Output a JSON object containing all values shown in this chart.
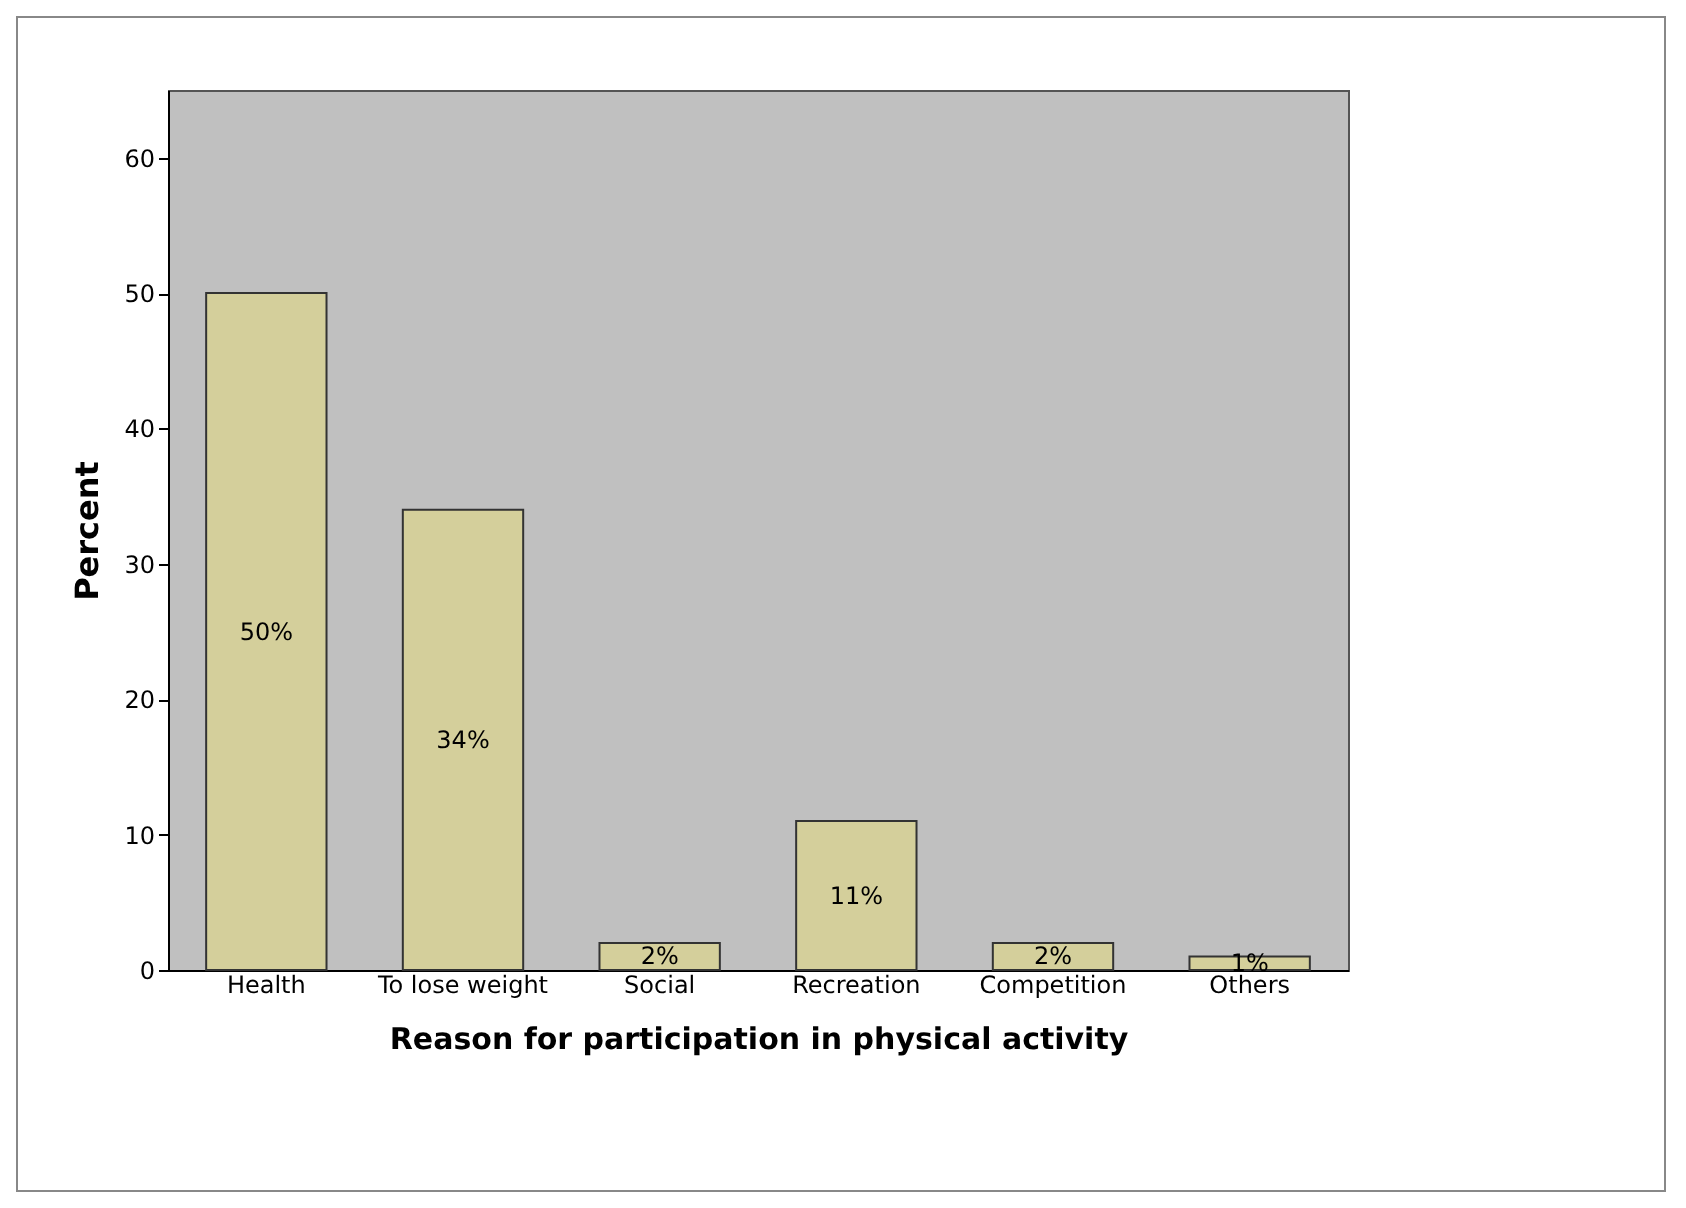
{
  "chart_data": {
    "type": "bar",
    "xlabel": "Reason for participation in physical activity",
    "ylabel": "Percent",
    "categories": [
      "Health",
      "To lose weight",
      "Social",
      "Recreation",
      "Competition",
      "Others"
    ],
    "values": [
      50,
      34,
      2,
      11,
      2,
      1
    ],
    "value_labels": [
      "50%",
      "34%",
      "2%",
      "11%",
      "2%",
      "1%"
    ],
    "color": "#d4cf9b",
    "ylim": [
      0,
      65
    ],
    "yticks": [
      0,
      10,
      20,
      30,
      40,
      50,
      60
    ],
    "grid": false
  }
}
